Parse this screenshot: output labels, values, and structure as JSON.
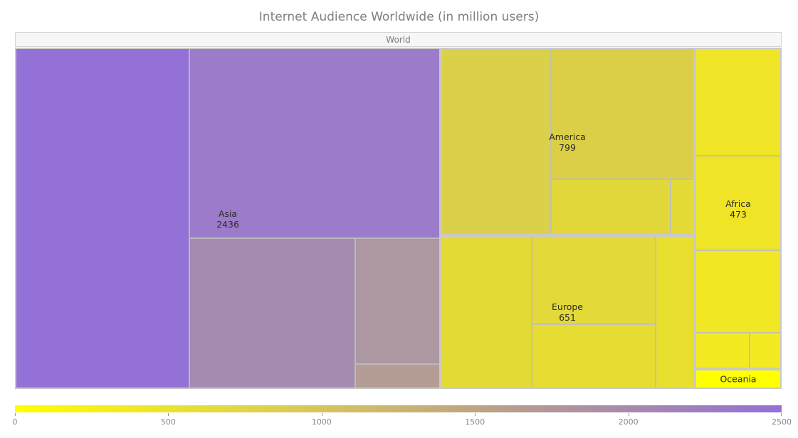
{
  "chart_data": {
    "type": "heatmap",
    "subtype": "treemap",
    "title": "Internet Audience Worldwide (in million users)",
    "root": {
      "name": "World"
    },
    "regions": [
      {
        "name": "Asia",
        "value": 2436,
        "color": "#9b7cc9"
      },
      {
        "name": "America",
        "value": 799,
        "color": "#dbd047"
      },
      {
        "name": "Europe",
        "value": 651,
        "color": "#e4db35"
      },
      {
        "name": "Africa",
        "value": 473,
        "color": "#efe526"
      },
      {
        "name": "Oceania",
        "value": null,
        "color": "#ffff00"
      }
    ],
    "color_scale": {
      "min": 0,
      "max": 2500,
      "ticks": [
        "0",
        "500",
        "1000",
        "1500",
        "2000",
        "2500"
      ],
      "colors": [
        "#ffff00",
        "#dcd04f",
        "#b59a90",
        "#9470d8"
      ]
    }
  }
}
